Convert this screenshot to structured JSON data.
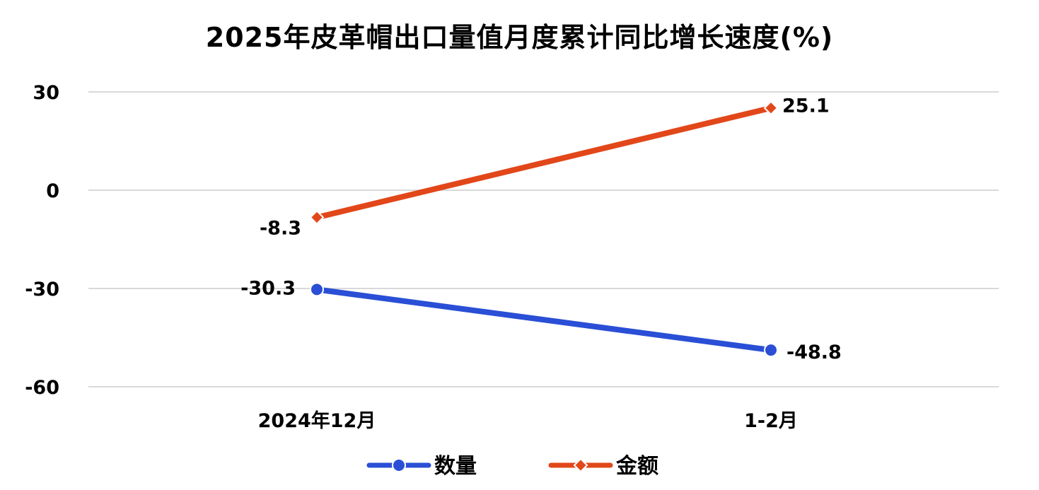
{
  "chart_data": {
    "type": "line",
    "title": "2025年皮革帽出口量值月度累计同比增长速度(%)",
    "categories": [
      "2024年12月",
      "1-2月"
    ],
    "series": [
      {
        "name": "数量",
        "values": [
          -30.3,
          -48.8
        ],
        "color": "#2a4fd6",
        "marker": "circle"
      },
      {
        "name": "金额",
        "values": [
          -8.3,
          25.1
        ],
        "color": "#e2471a",
        "marker": "diamond"
      }
    ],
    "ylim": [
      -60,
      30
    ],
    "yticks": [
      "30",
      "0",
      "-30",
      "-60"
    ],
    "data_labels": [
      [
        "-30.3",
        "-48.8"
      ],
      [
        "-8.3",
        "25.1"
      ]
    ],
    "grid": true,
    "legend": "bottom"
  }
}
